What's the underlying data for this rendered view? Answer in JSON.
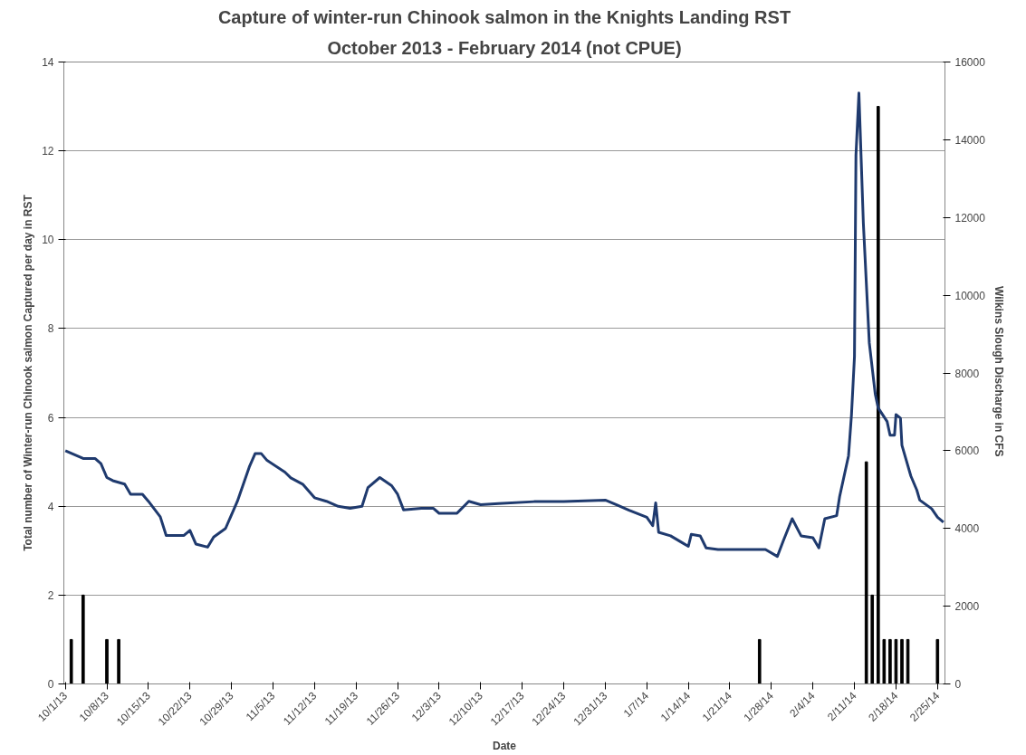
{
  "chart_data": {
    "type": "bar",
    "title": "Capture of winter-run Chinook salmon in the Knights Landing RST",
    "subtitle": "October 2013 - February 2014 (not CPUE)",
    "xlabel": "Date",
    "ylabel": "Total number of Winter-run Chinook salmon Captured per day in RST",
    "y2label": "Wilkins  Slough Discharge in CFS",
    "xlim": [
      "2013-09-30T18:00",
      "2014-02-26T06:00"
    ],
    "xticks": [
      {
        "value": "2013-10-01",
        "label": "10/1/13"
      },
      {
        "value": "2013-10-08",
        "label": "10/8/13"
      },
      {
        "value": "2013-10-15",
        "label": "10/15/13"
      },
      {
        "value": "2013-10-22",
        "label": "10/22/13"
      },
      {
        "value": "2013-10-29",
        "label": "10/29/13"
      },
      {
        "value": "2013-11-05",
        "label": "11/5/13"
      },
      {
        "value": "2013-11-12",
        "label": "11/12/13"
      },
      {
        "value": "2013-11-19",
        "label": "11/19/13"
      },
      {
        "value": "2013-11-26",
        "label": "11/26/13"
      },
      {
        "value": "2013-12-03",
        "label": "12/3/13"
      },
      {
        "value": "2013-12-10",
        "label": "12/10/13"
      },
      {
        "value": "2013-12-17",
        "label": "12/17/13"
      },
      {
        "value": "2013-12-24",
        "label": "12/24/13"
      },
      {
        "value": "2013-12-31",
        "label": "12/31/13"
      },
      {
        "value": "2014-01-07",
        "label": "1/7/14"
      },
      {
        "value": "2014-01-14",
        "label": "1/14/14"
      },
      {
        "value": "2014-01-21",
        "label": "1/21/14"
      },
      {
        "value": "2014-01-28",
        "label": "1/28/14"
      },
      {
        "value": "2014-02-04",
        "label": "2/4/14"
      },
      {
        "value": "2014-02-11",
        "label": "2/11/14"
      },
      {
        "value": "2014-02-18",
        "label": "2/18/14"
      },
      {
        "value": "2014-02-25",
        "label": "2/25/14"
      }
    ],
    "ylim": [
      0,
      14
    ],
    "yticks": [
      0,
      2,
      4,
      6,
      8,
      10,
      12,
      14
    ],
    "y2lim": [
      0,
      16000
    ],
    "y2ticks": [
      0,
      2000,
      4000,
      6000,
      8000,
      10000,
      12000,
      14000,
      16000
    ],
    "grid": "y",
    "series": [
      {
        "color": "#000000",
        "x": [
          "2013-10-02",
          "2013-10-04",
          "2013-10-08",
          "2013-10-10",
          "2014-01-26",
          "2014-02-13",
          "2014-02-14",
          "2014-02-15",
          "2014-02-16",
          "2014-02-17",
          "2014-02-18",
          "2014-02-19",
          "2014-02-20",
          "2014-02-25"
        ],
        "values": [
          1,
          2,
          1,
          1,
          1,
          5,
          2,
          13,
          1,
          1,
          1,
          1,
          1,
          1
        ]
      },
      {
        "type": "line",
        "axis": "y2",
        "color": "#1f3a6e",
        "x": [
          "2013-10-01",
          "2013-10-04",
          "2013-10-06",
          "2013-10-07",
          "2013-10-08",
          "2013-10-09",
          "2013-10-11",
          "2013-10-12",
          "2013-10-14",
          "2013-10-15",
          "2013-10-17",
          "2013-10-18",
          "2013-10-21",
          "2013-10-22",
          "2013-10-23",
          "2013-10-25",
          "2013-10-26",
          "2013-10-28",
          "2013-10-30",
          "2013-11-01",
          "2013-11-02",
          "2013-11-03",
          "2013-11-04",
          "2013-11-07",
          "2013-11-08",
          "2013-11-10",
          "2013-11-12",
          "2013-11-14",
          "2013-11-16",
          "2013-11-18",
          "2013-11-20",
          "2013-11-21",
          "2013-11-23",
          "2013-11-25",
          "2013-11-26",
          "2013-11-27",
          "2013-11-30",
          "2013-12-02",
          "2013-12-03",
          "2013-12-06",
          "2013-12-08",
          "2013-12-10",
          "2013-12-13",
          "2013-12-19",
          "2013-12-24",
          "2013-12-31",
          "2014-01-02",
          "2014-01-04",
          "2014-01-07",
          "2014-01-08",
          "2014-01-08T12:00",
          "2014-01-09",
          "2014-01-11",
          "2014-01-13",
          "2014-01-14",
          "2014-01-14T12:00",
          "2014-01-16",
          "2014-01-17",
          "2014-01-19",
          "2014-01-27",
          "2014-01-29",
          "2014-01-30",
          "2014-01-31T12:00",
          "2014-02-02",
          "2014-02-04",
          "2014-02-05",
          "2014-02-06",
          "2014-02-08",
          "2014-02-08T12:00",
          "2014-02-10",
          "2014-02-10T12:00",
          "2014-02-11",
          "2014-02-11T06:00",
          "2014-02-11T18:00",
          "2014-02-12T12:00",
          "2014-02-13T12:00",
          "2014-02-14T12:00",
          "2014-02-15",
          "2014-02-16T12:00",
          "2014-02-17",
          "2014-02-17T18:00",
          "2014-02-18",
          "2014-02-18T18:00",
          "2014-02-19",
          "2014-02-20T12:00",
          "2014-02-21T12:00",
          "2014-02-22",
          "2014-02-24",
          "2014-02-25",
          "2014-02-26"
        ],
        "values": [
          6000,
          5800,
          5800,
          5670,
          5310,
          5230,
          5140,
          4880,
          4880,
          4700,
          4300,
          3820,
          3820,
          3950,
          3600,
          3520,
          3780,
          4000,
          4700,
          5580,
          5930,
          5930,
          5750,
          5450,
          5300,
          5140,
          4790,
          4700,
          4570,
          4520,
          4570,
          5050,
          5310,
          5100,
          4880,
          4480,
          4520,
          4520,
          4390,
          4390,
          4700,
          4610,
          4640,
          4690,
          4690,
          4730,
          4600,
          4470,
          4290,
          4070,
          4660,
          3900,
          3810,
          3630,
          3540,
          3850,
          3810,
          3500,
          3460,
          3460,
          3280,
          3680,
          4250,
          3810,
          3760,
          3500,
          4250,
          4330,
          4820,
          5870,
          6930,
          8420,
          13600,
          15200,
          11850,
          8770,
          7460,
          7100,
          6750,
          6400,
          6400,
          6930,
          6840,
          6140,
          5350,
          4990,
          4730,
          4510,
          4290,
          4160
        ]
      }
    ]
  }
}
